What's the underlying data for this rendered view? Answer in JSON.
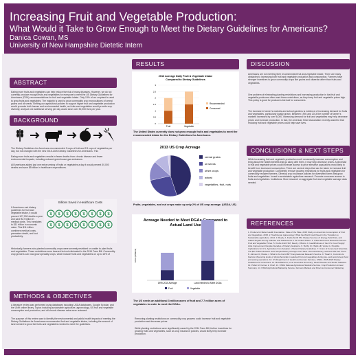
{
  "header": {
    "title": "Increasing Fruit and Vegetable Production:",
    "subtitle": "What Would it Take to Grow Enough to Meet the Dietary Guidelines for Americans?",
    "author": "Danica Cowan, MS",
    "affiliation": "University of New Hampshire Dietetic Intern"
  },
  "sections": {
    "abstract": "ABSTRACT",
    "background": "BACKGROUND",
    "methods": "METHODS & OBJECTIVES",
    "results": "RESULTS",
    "discussion": "DISCUSSION",
    "conclusions": "CONCLUSIONS & NEXT STEPS",
    "references": "REFERENCES"
  },
  "abstract_text": "Eating more fruits and vegetables can help reduce the risk of many diseases. However, we do not currently produce enough fruits and vegetables for everyone to meet the US Dietary Guidelines for Americans (DGA) recommendations for fruit and vegetable intake. Only 13% of our cropland is used to grow fruits and vegetables. The majority is used to grow commodity crop monocultures of cereal grains and oil seeds. Shifting our agricultural policies to support higher fruit and vegetable production would promote both human and environmental health, as fruits and vegetables would provide crop diversity, and just one additional serving per day would save over 30,000 lives per year.",
  "background_bullets": [
    "The Dietary Guidelines for Americans recommended 2 cups of fruit and 2.5 cups of vegetables per day, but not changed with the new 2015-2020 Dietary Guidelines for Americans. This recommendation has not changed in 10 years.",
    "Eating more fruits and vegetables results in fewer deaths from chronic disease and fewer environmental impacts, including reduced greenhouse gas emissions.",
    "All Americans added just one extra serving of fruits or vegetables a day it would prevent 30,000 deaths and save $5 billion in healthcare expenditures."
  ],
  "savings_text": "If Americans met dietary guidelines for fruit and vegetable intake, it would prevent 127,000 deaths a year and save $17 billion in medical costs. This translates to $11 trillion in economic value. This $11 trillion combines medical costs, premature death, and lost productivity.",
  "savings_title": "Billions Saved in Healthcare Costs",
  "policy_bullet": "Historically, farmers who planted commodity crops were severely restricted or unable to plant fruits and vegetables. These restrictions were lowered but not eliminated in the 2014 Farm Bill. Commodity crop growers can now grow specialty crops, which include fruits and vegetables on up to 15% of acreage.",
  "methods_bullets": [
    "A literature review was performed using databases including USDA databases, Google Scholar, and the UNH online library. Topics including sustainable agriculture, agroecology, US fruit and vegetable consumption and production, and all chronic disease rates were reviewed.",
    "The purpose of this review was to identify the environmental and public health impacts of meeting the Dietary Guidelines for Americans recommended fruit and vegetable intake, including the amount of land needed to grow the fruits and vegetables needed to meet the guidelines."
  ],
  "chart1_caption": "The United States currently does not grow enough fruits and vegetables to meet the recommended intake for the Dietary Guidelines for Americans.",
  "chart2_caption": "Fruits, vegetables, and nut crops make up only 2% of US crop acreage. (USDA, US)",
  "chart3_caption": "The US needs an additional 3 million acres of fruit and 7.7 million acres of vegetables in order to meet the DGAs.",
  "results_bullets": [
    "Removing planting restrictions on commodity crop growers could increase fruit and vegetable production and decrease prices.",
    "While planting restrictions were significantly eased by the 2014 Farm Bill, further incentives for growing fruits and vegetables, such as crop insurance policies, would likely help increase production."
  ],
  "discussion_paras": [
    "Americans are not meeting their recommended fruit and vegetable intake. There are many obstacles to increasing both fruit and vegetable production and consumption. Farmers have stronger incentives to grow commodity crops like grains and oilseeds rather than fruits and vegetables.",
    "One problem of eliminating planting restrictions and increasing production is that fruit and vegetable producers often want these restrictions, as they keep fruit and vegetable prices high. This policy is good for producers but bad for consumers.",
    "The increase in farmer's markets and school gardens is evidence of increasing demand for fruits and vegetables, particularly locally grown. Between 1994 and 2014 the number of farmer's markets increased by over 6,000, increasing demand for fruit and vegetables may help decrease prices and increase production. In fact, the American Heart Association recently asserted that reducing fruit and vegetable prices could help save lives."
  ],
  "conclusions_text": "While increasing fruit and vegetable production won't necessarily increase consumption and bring about the health benefits that go along with them, it may help decrease prices. A decrease in fruit and vegetable prices could increase access to price sensitive populations most likely to benefit from increased consumption. There are several steps that can be taken to increase fruit and vegetable production: Completely remove growing restrictions for fruits and vegetables for commodity recipient farmers. Develop crop insurance policies for diversified farms that grow fruits and vegetables. Invest in sustainable agriculture research. Promote consumer access to fruits and vegetables. Institutions. More research on aggregate fruit and vegetable acreage data needed.",
  "references_text": "1. Produce for Better Health Foundation. State of the Plate, 2015 Study on America's Consumption of Fruit and Vegetables. 2015. 2. Teaching an Agroecology: What the World Could Need in the Transition to Sustainable Agriculture. 2014. 3. Reedy J, Krebs-Smith SM. Dietary Sources of Energy, Solid Fats, and Added Sugars Among Children and Adolescents in the United States. 4. USDA Economic Research Service. Fruit and Vegetable Prices. 5. Krebs-Smith SM, Reedy J, Bosire C. Healthfulness of the U.S. Food Supply: Little Improvement Despite Decades of Dietary Guidance. 6. Buzby JC, Wells HF, Vocke G. Possible Implications for U.S. Agriculture from Adoption of Select Dietary Guidelines. 7. Union of Concerned Scientists. The $11 Trillion Reward: How Simple Dietary Changes Can Save Lives and Money, and How We Get There. 8. Johnson R, Monke J. What Is the Farm Bill? Congressional Research Service. 9. Tiwari U, Cummins E. Factors influencing levels of phytochemicals in selected fruit and vegetables during pre- and post-harvest food processing operations. 10. US Department of Health and Human Services, USDA. 2015-2020 Dietary Guidelines for Americans. 11. Mozaffarian D, et al. Executive Summary: Heart Disease and Stroke Statistics. 12. Pollan M. Farmer in Chief. 13. USDA National Agricultural Statistics Service. Crop Production Annual Summary. 14. USDA Agricultural Marketing Service. Farmers Markets and Direct-to-Consumer Marketing.",
  "chart_data": [
    {
      "type": "bar",
      "title": "2013 Average Daily Fruit & Vegetable Intake Compared to Dietary Guidelines",
      "categories": [
        "Fruit",
        "Vegetable"
      ],
      "series": [
        {
          "name": "Recommended",
          "values": [
            2,
            2.5
          ]
        },
        {
          "name": "Consumed",
          "values": [
            1,
            1.5
          ]
        }
      ],
      "ylim": [
        0,
        3
      ],
      "yticks": [
        "3",
        "2.5",
        "2",
        "1.5",
        "1",
        "0.5",
        "0"
      ],
      "colors": [
        "#f8c89b",
        "#c25e1c"
      ]
    },
    {
      "type": "pie",
      "title": "2013 US Crop Acreage",
      "series": [
        {
          "name": "cereal grains",
          "value": 44
        },
        {
          "name": "oil seeds",
          "value": 26
        },
        {
          "name": "other crops",
          "value": 15
        },
        {
          "name": "wheat",
          "value": 11
        },
        {
          "name": "vegetables, fruit, nuts",
          "value": 2
        }
      ],
      "colors": [
        "#2c2a66",
        "#4a4896",
        "#8c89c8",
        "#b9b7e1",
        "#d9d2ec"
      ]
    },
    {
      "type": "bar",
      "title": "Acreage Needed to Meet DGAs Compared to Actual Land Use",
      "categories": [
        "1999-2015 Average",
        "Land Needed to Meet DGAs"
      ],
      "series": [
        {
          "name": "Fruit",
          "values": [
            3.3,
            6.3
          ]
        },
        {
          "name": "Vegetable",
          "values": [
            5.6,
            13.3
          ]
        }
      ],
      "ylim": [
        0,
        16
      ],
      "colors": [
        "#2c2a66",
        "#a09ed6"
      ]
    }
  ],
  "savings_icon_count": 16
}
